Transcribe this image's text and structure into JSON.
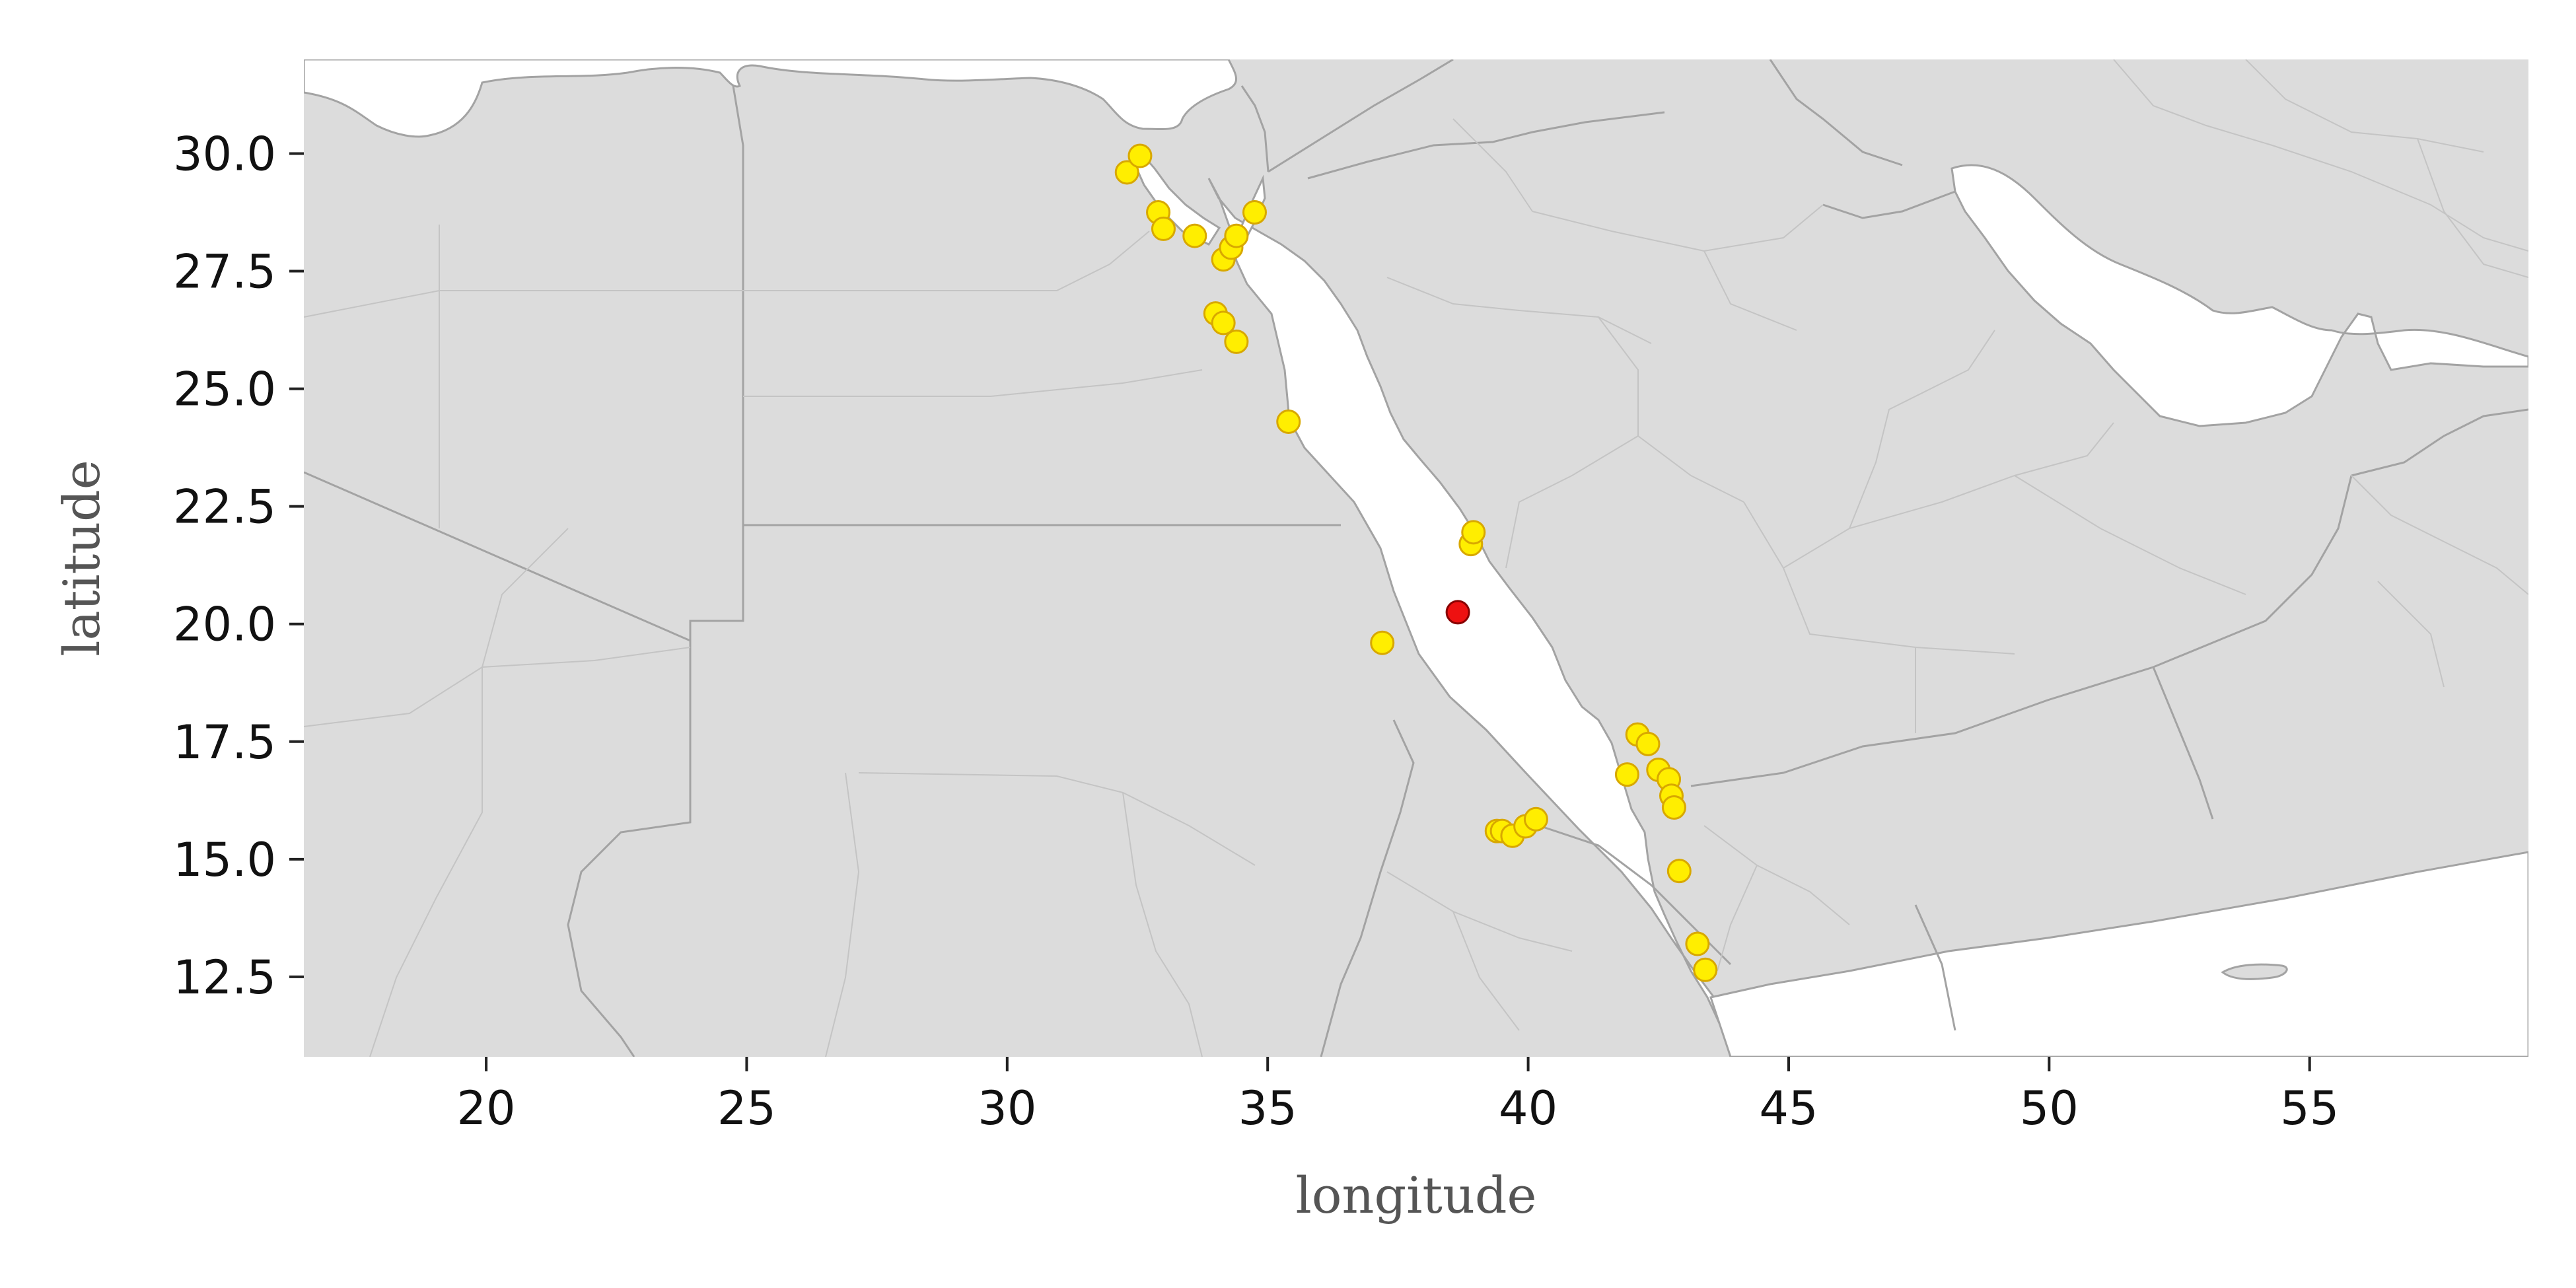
{
  "chart_data": {
    "type": "scatter",
    "xlabel": "longitude",
    "ylabel": "latitude",
    "xlim": [
      16.5,
      59.2
    ],
    "ylim": [
      10.8,
      32.0
    ],
    "x_ticks": [
      20,
      25,
      30,
      35,
      40,
      45,
      50,
      55
    ],
    "x_tick_labels": [
      "20",
      "25",
      "30",
      "35",
      "40",
      "45",
      "50",
      "55"
    ],
    "y_ticks": [
      12.5,
      15.0,
      17.5,
      20.0,
      22.5,
      25.0,
      27.5,
      30.0
    ],
    "y_tick_labels": [
      "12.5",
      "15.0",
      "17.5",
      "20.0",
      "22.5",
      "25.0",
      "27.5",
      "30.0"
    ],
    "grid": false,
    "basemap": {
      "land_color": "#dcdcdc",
      "water_color": "#ffffff",
      "border_color": "#a3a3a3",
      "subregion_border_color": "#c4c4c4"
    },
    "series": [
      {
        "color": "#ffee00",
        "edge_color": "#d8a800",
        "points": [
          {
            "lon": 32.3,
            "lat": 29.6
          },
          {
            "lon": 32.55,
            "lat": 29.95
          },
          {
            "lon": 32.9,
            "lat": 28.75
          },
          {
            "lon": 33.0,
            "lat": 28.4
          },
          {
            "lon": 33.6,
            "lat": 28.25
          },
          {
            "lon": 34.15,
            "lat": 27.75
          },
          {
            "lon": 34.3,
            "lat": 28.0
          },
          {
            "lon": 34.4,
            "lat": 28.25
          },
          {
            "lon": 34.75,
            "lat": 28.75
          },
          {
            "lon": 34.0,
            "lat": 26.6
          },
          {
            "lon": 34.15,
            "lat": 26.4
          },
          {
            "lon": 34.4,
            "lat": 26.0
          },
          {
            "lon": 35.4,
            "lat": 24.3
          },
          {
            "lon": 37.2,
            "lat": 19.6
          },
          {
            "lon": 38.9,
            "lat": 21.7
          },
          {
            "lon": 38.95,
            "lat": 21.95
          },
          {
            "lon": 39.4,
            "lat": 15.6
          },
          {
            "lon": 39.5,
            "lat": 15.6
          },
          {
            "lon": 39.7,
            "lat": 15.5
          },
          {
            "lon": 39.95,
            "lat": 15.7
          },
          {
            "lon": 40.15,
            "lat": 15.85
          },
          {
            "lon": 41.9,
            "lat": 16.8
          },
          {
            "lon": 42.1,
            "lat": 17.65
          },
          {
            "lon": 42.3,
            "lat": 17.45
          },
          {
            "lon": 42.5,
            "lat": 16.9
          },
          {
            "lon": 42.7,
            "lat": 16.7
          },
          {
            "lon": 42.75,
            "lat": 16.35
          },
          {
            "lon": 42.8,
            "lat": 16.1
          },
          {
            "lon": 42.9,
            "lat": 14.75
          },
          {
            "lon": 43.25,
            "lat": 13.2
          },
          {
            "lon": 43.4,
            "lat": 12.65
          }
        ]
      },
      {
        "color": "#ee1111",
        "edge_color": "#880000",
        "points": [
          {
            "lon": 38.65,
            "lat": 20.25
          }
        ]
      }
    ]
  }
}
